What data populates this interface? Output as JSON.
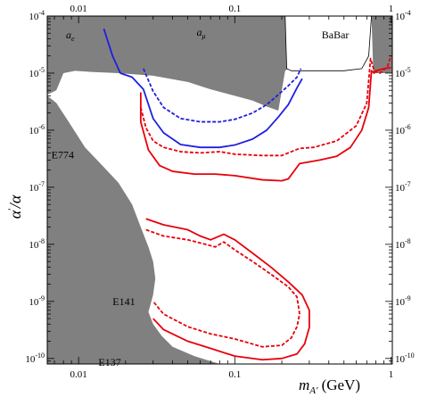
{
  "chart_data": {
    "type": "line",
    "xlabel": "m_{A'} (GeV)",
    "xlabel_main": "m",
    "xlabel_sub": "A'",
    "xlabel_unit": " (GeV)",
    "ylabel": "α'/α",
    "ylabel_main": "α",
    "ylabel_sup": "′",
    "ylabel_rest": "/α",
    "x_scale": "log",
    "y_scale": "log",
    "xlim": [
      0.0063,
      1.02
    ],
    "ylim": [
      8e-11,
      0.0001
    ],
    "x_ticks_bottom": [
      {
        "v": 0.01,
        "label": "0.01"
      },
      {
        "v": 0.1,
        "label": "0.1"
      },
      {
        "v": 1,
        "label": "1"
      }
    ],
    "x_ticks_top": [
      {
        "v": 0.01,
        "label": "0.01"
      },
      {
        "v": 0.1,
        "label": "0.1"
      },
      {
        "v": 1,
        "label": "1"
      }
    ],
    "y_ticks": [
      {
        "v": 1e-10,
        "base": "10",
        "exp": "-10"
      },
      {
        "v": 1e-09,
        "base": "10",
        "exp": "-9"
      },
      {
        "v": 1e-08,
        "base": "10",
        "exp": "-8"
      },
      {
        "v": 1e-07,
        "base": "10",
        "exp": "-7"
      },
      {
        "v": 1e-06,
        "base": "10",
        "exp": "-6"
      },
      {
        "v": 1e-05,
        "base": "10",
        "exp": "-5"
      },
      {
        "v": 0.0001,
        "base": "10",
        "exp": "-4"
      }
    ],
    "colors": {
      "excluded": "#808080",
      "projection": "#e8000b",
      "blue": "#1f1fe0",
      "babar_line": "#000000"
    },
    "regions": [
      {
        "name": "g-2 excluded (a_e, a_mu, BaBar)",
        "points": [
          [
            0.0063,
            0.0001
          ],
          [
            1.02,
            0.0001
          ],
          [
            1.02,
            2.6e-06
          ],
          [
            0.0063,
            2.6e-06
          ]
        ],
        "exclusion_edge": [
          [
            0.0063,
            4.2e-06
          ],
          [
            0.0072,
            5e-06
          ],
          [
            0.008,
            1e-05
          ],
          [
            0.0095,
            1.1e-05
          ],
          [
            0.012,
            1.05e-05
          ],
          [
            0.018,
            1e-05
          ],
          [
            0.03,
            9e-06
          ],
          [
            0.05,
            7e-06
          ],
          [
            0.07,
            5.2e-06
          ],
          [
            0.1,
            4e-06
          ],
          [
            0.13,
            3.3e-06
          ],
          [
            0.16,
            2.6e-06
          ],
          [
            0.19,
            2.2e-06
          ],
          [
            0.21,
            1.1e-05
          ],
          [
            0.22,
            1.2e-05
          ],
          [
            0.23,
            1.2e-05
          ],
          [
            0.3,
            1.1e-05
          ],
          [
            0.5,
            1.1e-05
          ],
          [
            0.65,
            1.2e-05
          ],
          [
            0.73,
            3e-05
          ],
          [
            0.75,
            0.0001
          ]
        ]
      },
      {
        "name": "beam dump excluded (E774, E141, E137)",
        "points": [
          [
            0.0063,
            4e-06
          ],
          [
            0.0072,
            3e-06
          ],
          [
            0.0085,
            1.5e-06
          ],
          [
            0.011,
            5e-07
          ],
          [
            0.014,
            2.5e-07
          ],
          [
            0.018,
            1.2e-07
          ],
          [
            0.022,
            5e-08
          ],
          [
            0.025,
            2e-08
          ],
          [
            0.028,
            9e-09
          ],
          [
            0.03,
            5e-09
          ],
          [
            0.031,
            2.5e-09
          ],
          [
            0.03,
            1.3e-09
          ],
          [
            0.028,
            6.5e-10
          ],
          [
            0.03,
            4e-10
          ],
          [
            0.034,
            2.5e-10
          ],
          [
            0.04,
            1.6e-10
          ],
          [
            0.055,
            1.1e-10
          ],
          [
            0.08,
            8e-11
          ],
          [
            0.0063,
            8e-11
          ]
        ]
      }
    ],
    "region_labels": [
      {
        "text": "a",
        "sub": "e",
        "x": 0.0083,
        "y": 4.1e-05,
        "italic": true,
        "color": "#000"
      },
      {
        "text": "a",
        "sub": "μ",
        "x": 0.057,
        "y": 4.5e-05,
        "italic": true,
        "color": "#000"
      },
      {
        "text": "BaBar",
        "x": 0.36,
        "y": 4.1e-05,
        "italic": false,
        "color": "#000"
      },
      {
        "text": "E774",
        "x": 0.0067,
        "y": 3.2e-07,
        "italic": false,
        "color": "#000"
      },
      {
        "text": "E141",
        "x": 0.0165,
        "y": 8.6e-10,
        "italic": false,
        "color": "#000"
      },
      {
        "text": "E137",
        "x": 0.0134,
        "y": 7.4e-11,
        "italic": false,
        "color": "#000"
      }
    ],
    "series": [
      {
        "color": "blue",
        "dash": false,
        "points": [
          [
            0.0145,
            6e-05
          ],
          [
            0.0165,
            2e-05
          ],
          [
            0.0185,
            1e-05
          ],
          [
            0.022,
            8.5e-06
          ],
          [
            0.026,
            5.2e-06
          ],
          [
            0.03,
            1.6e-06
          ],
          [
            0.035,
            9e-07
          ],
          [
            0.045,
            5.6e-07
          ],
          [
            0.06,
            5e-07
          ],
          [
            0.08,
            5e-07
          ],
          [
            0.1,
            5.5e-07
          ],
          [
            0.13,
            7e-07
          ],
          [
            0.16,
            1e-06
          ],
          [
            0.19,
            1.7e-06
          ],
          [
            0.22,
            2.8e-06
          ],
          [
            0.25,
            5.5e-06
          ],
          [
            0.27,
            8e-06
          ]
        ]
      },
      {
        "color": "blue",
        "dash": true,
        "points": [
          [
            0.026,
            1.2e-05
          ],
          [
            0.03,
            4.8e-06
          ],
          [
            0.035,
            2.5e-06
          ],
          [
            0.045,
            1.6e-06
          ],
          [
            0.06,
            1.4e-06
          ],
          [
            0.08,
            1.4e-06
          ],
          [
            0.1,
            1.55e-06
          ],
          [
            0.13,
            2e-06
          ],
          [
            0.16,
            2.8e-06
          ],
          [
            0.19,
            4.2e-06
          ],
          [
            0.22,
            6e-06
          ],
          [
            0.25,
            8.5e-06
          ],
          [
            0.265,
            1.2e-05
          ]
        ]
      },
      {
        "color": "projection",
        "dash": true,
        "points": [
          [
            0.025,
            2.5e-06
          ],
          [
            0.027,
            1.1e-06
          ],
          [
            0.03,
            6.5e-07
          ],
          [
            0.035,
            5e-07
          ],
          [
            0.045,
            4.2e-07
          ],
          [
            0.06,
            4e-07
          ],
          [
            0.08,
            4.2e-07
          ],
          [
            0.1,
            3.8e-07
          ],
          [
            0.15,
            3.6e-07
          ],
          [
            0.2,
            3.6e-07
          ],
          [
            0.22,
            4e-07
          ],
          [
            0.26,
            4.8e-07
          ],
          [
            0.32,
            5e-07
          ],
          [
            0.45,
            6.5e-07
          ],
          [
            0.6,
            1.2e-06
          ],
          [
            0.7,
            3e-06
          ],
          [
            0.74,
            1.8e-05
          ],
          [
            0.78,
            1.1e-05
          ],
          [
            0.85,
            1e-05
          ],
          [
            0.95,
            1.3e-05
          ],
          [
            1.0,
            2e-05
          ]
        ]
      },
      {
        "color": "projection",
        "dash": false,
        "points": [
          [
            0.025,
            4.6e-06
          ],
          [
            0.025,
            1.4e-06
          ],
          [
            0.028,
            4.5e-07
          ],
          [
            0.033,
            2.4e-07
          ],
          [
            0.04,
            1.9e-07
          ],
          [
            0.055,
            1.7e-07
          ],
          [
            0.075,
            1.7e-07
          ],
          [
            0.1,
            1.6e-07
          ],
          [
            0.15,
            1.35e-07
          ],
          [
            0.2,
            1.3e-07
          ],
          [
            0.22,
            1.4e-07
          ],
          [
            0.26,
            2.6e-07
          ],
          [
            0.35,
            3e-07
          ],
          [
            0.45,
            3.5e-07
          ],
          [
            0.55,
            5e-07
          ],
          [
            0.65,
            1e-06
          ],
          [
            0.72,
            2.5e-06
          ],
          [
            0.75,
            1.1e-05
          ],
          [
            0.78,
            1e-05
          ],
          [
            0.8,
            1.1e-05
          ],
          [
            0.85,
            1.15e-05
          ],
          [
            0.9,
            1.2e-05
          ],
          [
            1.0,
            1.25e-05
          ]
        ]
      },
      {
        "color": "projection",
        "dash": true,
        "points": [
          [
            0.027,
            1.8e-08
          ],
          [
            0.035,
            1.4e-08
          ],
          [
            0.05,
            1.2e-08
          ],
          [
            0.065,
            1e-08
          ],
          [
            0.075,
            9e-09
          ],
          [
            0.085,
            1.1e-08
          ],
          [
            0.1,
            8e-09
          ],
          [
            0.13,
            5e-09
          ],
          [
            0.17,
            3e-09
          ],
          [
            0.22,
            1.8e-09
          ],
          [
            0.25,
            1.2e-09
          ],
          [
            0.26,
            6e-10
          ],
          [
            0.25,
            3.6e-10
          ],
          [
            0.23,
            2.3e-10
          ],
          [
            0.2,
            1.7e-10
          ],
          [
            0.15,
            1.6e-10
          ],
          [
            0.1,
            2.2e-10
          ],
          [
            0.07,
            2.7e-10
          ],
          [
            0.05,
            3.6e-10
          ],
          [
            0.035,
            6e-10
          ],
          [
            0.03,
            1e-09
          ]
        ]
      },
      {
        "color": "projection",
        "dash": false,
        "points": [
          [
            0.027,
            2.8e-08
          ],
          [
            0.035,
            2.2e-08
          ],
          [
            0.05,
            1.8e-08
          ],
          [
            0.06,
            1.4e-08
          ],
          [
            0.07,
            1.2e-08
          ],
          [
            0.085,
            1.5e-08
          ],
          [
            0.1,
            1.2e-08
          ],
          [
            0.13,
            7e-09
          ],
          [
            0.17,
            4e-09
          ],
          [
            0.22,
            2.2e-09
          ],
          [
            0.27,
            1.3e-09
          ],
          [
            0.3,
            7e-10
          ],
          [
            0.3,
            3.5e-10
          ],
          [
            0.28,
            1.8e-10
          ],
          [
            0.25,
            1.2e-10
          ],
          [
            0.2,
            1e-10
          ],
          [
            0.15,
            9.5e-11
          ],
          [
            0.1,
            1.1e-10
          ],
          [
            0.07,
            1.5e-10
          ],
          [
            0.05,
            2e-10
          ],
          [
            0.035,
            3.2e-10
          ],
          [
            0.03,
            5e-10
          ]
        ]
      }
    ]
  }
}
